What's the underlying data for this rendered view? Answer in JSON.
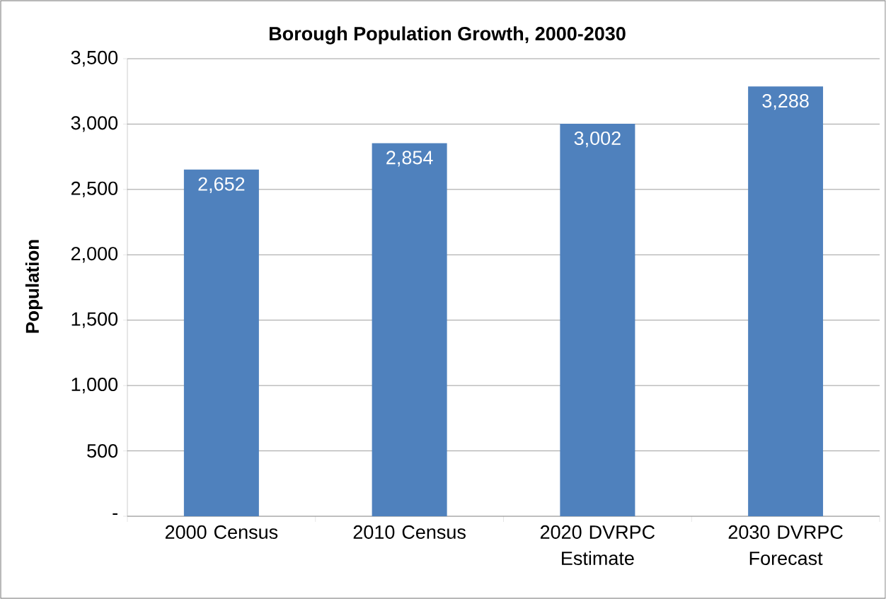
{
  "chart_data": {
    "type": "bar",
    "title": "Borough Population Growth, 2000-2030",
    "ylabel": "Population",
    "categories": [
      "2000 Census",
      "2010 Census",
      "2020 DVRPC Estimate",
      "2030 DVRPC Forecast"
    ],
    "values": [
      2652,
      2854,
      3002,
      3288
    ],
    "value_labels": [
      "2,652",
      "2,854",
      "3,002",
      "3,288"
    ],
    "color": "#4f81bd",
    "ylim": [
      0,
      3500
    ],
    "yticks": [
      {
        "value": 0,
        "label": "-"
      },
      {
        "value": 500,
        "label": "500"
      },
      {
        "value": 1000,
        "label": "1,000"
      },
      {
        "value": 1500,
        "label": "1,500"
      },
      {
        "value": 2000,
        "label": "2,000"
      },
      {
        "value": 2500,
        "label": "2,500"
      },
      {
        "value": 3000,
        "label": "3,000"
      },
      {
        "value": 3500,
        "label": "3,500"
      }
    ],
    "grid": "y"
  }
}
